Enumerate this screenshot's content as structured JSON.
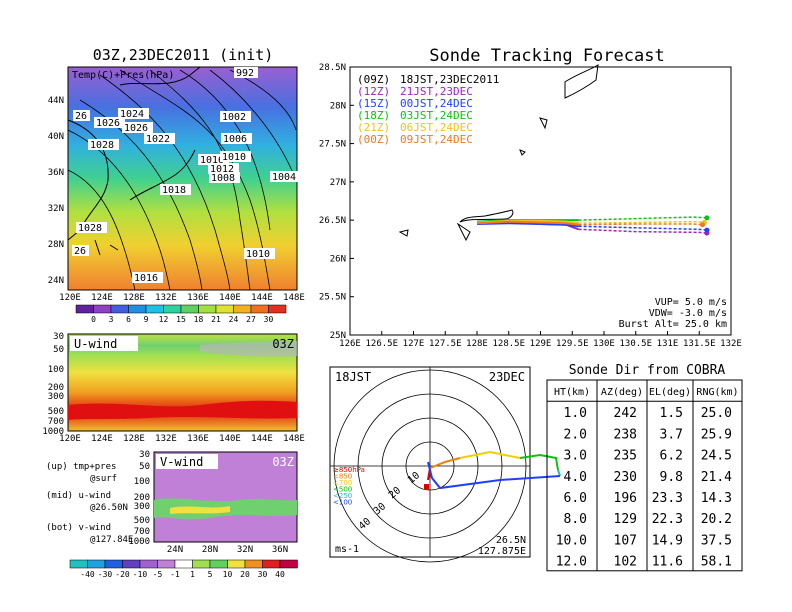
{
  "left_panel": {
    "title": "03Z,23DEC2011 (init)",
    "label": "Temp(C)+Pres(hPa)",
    "lat_ticks": [
      "44N",
      "40N",
      "36N",
      "32N",
      "28N",
      "24N"
    ],
    "lon_ticks": [
      "120E",
      "124E",
      "128E",
      "132E",
      "136E",
      "140E",
      "144E",
      "148E"
    ],
    "isobar_labels": [
      "992",
      "1024",
      "1026",
      "1026",
      "1028",
      "1022",
      "1002",
      "1006",
      "1016",
      "1010",
      "1012",
      "1008",
      "1004",
      "1018",
      "1028",
      "1010",
      "1016",
      "26",
      "26"
    ],
    "colorbar_ticks": [
      "0",
      "3",
      "6",
      "9",
      "12",
      "15",
      "18",
      "21",
      "24",
      "27",
      "30"
    ]
  },
  "uwind_panel": {
    "label": "U-wind",
    "time": "03Z",
    "y_ticks": [
      "30",
      "50",
      "100",
      "200",
      "300",
      "500",
      "700",
      "1000"
    ],
    "x_ticks": [
      "120E",
      "124E",
      "128E",
      "132E",
      "136E",
      "140E",
      "144E",
      "148E"
    ]
  },
  "vwind_panel": {
    "label": "V-wind",
    "time": "03Z",
    "y_ticks": [
      "30",
      "50",
      "100",
      "200",
      "300",
      "500",
      "700",
      "1000"
    ],
    "x_ticks": [
      "24N",
      "28N",
      "32N",
      "36N"
    ],
    "colorbar_ticks": [
      "-40",
      "-30",
      "-20",
      "-10",
      "-5",
      "-1",
      "1",
      "5",
      "10",
      "20",
      "30",
      "40"
    ]
  },
  "legend_notes": [
    "(up) tmp+pres",
    "@surf",
    "(mid) u-wind",
    "@26.50N",
    "(bot) v-wind",
    "@127.84E"
  ],
  "track_panel": {
    "title": "Sonde Tracking Forecast",
    "lat_ticks": [
      "28.5N",
      "28N",
      "27.5N",
      "27N",
      "26.5N",
      "26N",
      "25.5N",
      "25N"
    ],
    "lon_ticks": [
      "126E",
      "126.5E",
      "127E",
      "127.5E",
      "128E",
      "128.5E",
      "129E",
      "129.5E",
      "130E",
      "130.5E",
      "131E",
      "131.5E",
      "132E"
    ],
    "launches": [
      {
        "z": "(09Z)",
        "jst": "18JST,23DEC2011",
        "color": "#000000"
      },
      {
        "z": "(12Z)",
        "jst": "21JST,23DEC",
        "color": "#a020c0"
      },
      {
        "z": "(15Z)",
        "jst": "00JST,24DEC",
        "color": "#2040ff"
      },
      {
        "z": "(18Z)",
        "jst": "03JST,24DEC",
        "color": "#10c010"
      },
      {
        "z": "(21Z)",
        "jst": "06JST,24DEC",
        "color": "#f0c020"
      },
      {
        "z": "(00Z)",
        "jst": "09JST,24DEC",
        "color": "#f07820"
      }
    ],
    "params": [
      "VUP= 5.0 m/s",
      "VDW= -3.0 m/s",
      "Burst Alt= 25.0 km"
    ]
  },
  "polar_panel": {
    "time": "18JST",
    "date": "23DEC",
    "ring_labels": [
      "10",
      "20",
      "30",
      "40"
    ],
    "pressure_legend": [
      {
        "text": "≥850hPa",
        "color": "#e00000"
      },
      {
        "text": "<850",
        "color": "#f08000"
      },
      {
        "text": "<700",
        "color": "#f0d000"
      },
      {
        "text": "<500",
        "color": "#10c010"
      },
      {
        "text": "<250",
        "color": "#20c0c0"
      },
      {
        "text": "<100",
        "color": "#2040ff"
      }
    ],
    "units": "ms-1",
    "loc_lat": "26.5N",
    "loc_lon": "127.875E"
  },
  "table": {
    "title": "Sonde Dir from COBRA",
    "headers": [
      "HT(km)",
      "AZ(deg)",
      "EL(deg)",
      "RNG(km)"
    ],
    "rows": [
      [
        "1.0",
        "242",
        "1.5",
        "25.0"
      ],
      [
        "2.0",
        "238",
        "3.7",
        "25.9"
      ],
      [
        "3.0",
        "235",
        "6.2",
        "24.5"
      ],
      [
        "4.0",
        "230",
        "9.8",
        "21.4"
      ],
      [
        "6.0",
        "196",
        "23.3",
        "14.3"
      ],
      [
        "8.0",
        "129",
        "22.3",
        "20.2"
      ],
      [
        "10.0",
        "107",
        "14.9",
        "37.5"
      ],
      [
        "12.0",
        "102",
        "11.6",
        "58.1"
      ]
    ]
  },
  "chart_data": {
    "type": "line",
    "title": "Sonde Tracking Forecast",
    "xlim": [
      126,
      132
    ],
    "ylim": [
      25,
      28.5
    ],
    "series": [
      {
        "name": "(09Z) 18JST,23DEC2011",
        "color": "#000000",
        "x": [
          128.0,
          128.5,
          129.0,
          129.3,
          129.4,
          129.5
        ],
        "y": [
          26.47,
          26.49,
          26.48,
          26.47,
          26.46,
          26.44
        ]
      },
      {
        "name": "(12Z) 21JST,23DEC",
        "color": "#a020c0",
        "x": [
          128.0,
          128.5,
          129.0,
          129.4,
          129.6,
          130.5,
          131.5,
          131.62
        ],
        "y": [
          26.46,
          26.47,
          26.45,
          26.44,
          26.38,
          26.35,
          26.34,
          26.33
        ]
      },
      {
        "name": "(15Z) 00JST,24DEC",
        "color": "#2040ff",
        "x": [
          128.0,
          128.5,
          129.0,
          129.4,
          129.6,
          130.5,
          131.5,
          131.62
        ],
        "y": [
          26.45,
          26.46,
          26.45,
          26.44,
          26.42,
          26.4,
          26.38,
          26.37
        ]
      },
      {
        "name": "(18Z) 03JST,24DEC",
        "color": "#10c010",
        "x": [
          128.0,
          128.5,
          129.0,
          129.4,
          129.6,
          130.5,
          131.4,
          131.62
        ],
        "y": [
          26.48,
          26.5,
          26.5,
          26.5,
          26.5,
          26.52,
          26.54,
          26.53
        ]
      },
      {
        "name": "(21Z) 06JST,24DEC",
        "color": "#f0c020",
        "x": [
          128.0,
          128.5,
          129.0,
          129.4,
          129.6,
          130.5,
          131.4,
          131.58
        ],
        "y": [
          26.47,
          26.49,
          26.49,
          26.48,
          26.46,
          26.47,
          26.48,
          26.47
        ]
      },
      {
        "name": "(00Z) 09JST,24DEC",
        "color": "#f07820",
        "x": [
          128.0,
          128.5,
          129.0,
          129.4,
          129.6,
          130.5,
          131.4,
          131.55
        ],
        "y": [
          26.46,
          26.48,
          26.47,
          26.46,
          26.44,
          26.45,
          26.45,
          26.44
        ]
      }
    ]
  }
}
